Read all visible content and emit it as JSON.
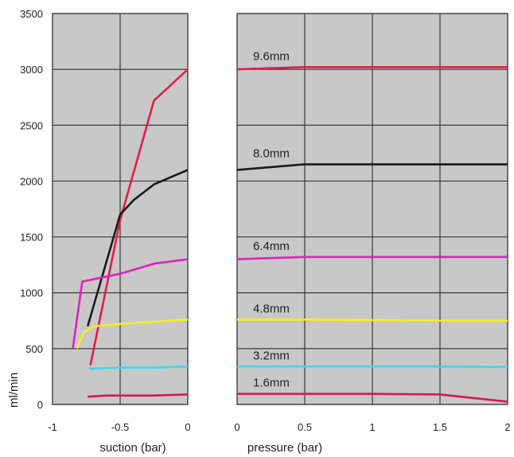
{
  "chart_data": {
    "type": "line",
    "ylabel": "ml/min",
    "ylim": [
      0,
      3500
    ],
    "yticks": [
      "0",
      "500",
      "1000",
      "1500",
      "2000",
      "2500",
      "3000",
      "3500"
    ],
    "colors": {
      "9.6mm": "#e01f4a",
      "8.0mm": "#1a1a1a",
      "6.4mm": "#e020c0",
      "4.8mm": "#f2f020",
      "3.2mm": "#40d8e8",
      "1.6mm": "#d81850"
    },
    "panels": [
      {
        "name": "suction",
        "xlabel": "suction (bar)",
        "xlim": [
          -1,
          0
        ],
        "xticks": [
          "-1",
          "-0.5",
          "0"
        ],
        "series": [
          {
            "name": "9.6mm",
            "x": [
              -0.72,
              -0.5,
              -0.25,
              0
            ],
            "y": [
              350,
              1650,
              2720,
              3000
            ]
          },
          {
            "name": "8.0mm",
            "x": [
              -0.74,
              -0.5,
              -0.4,
              -0.25,
              0
            ],
            "y": [
              700,
              1700,
              1830,
              1970,
              2100
            ]
          },
          {
            "name": "6.4mm",
            "x": [
              -0.85,
              -0.78,
              -0.5,
              -0.25,
              0
            ],
            "y": [
              500,
              1100,
              1170,
              1260,
              1300
            ]
          },
          {
            "name": "4.8mm",
            "x": [
              -0.82,
              -0.77,
              -0.7,
              -0.5,
              -0.25,
              0
            ],
            "y": [
              500,
              640,
              700,
              720,
              740,
              760
            ]
          },
          {
            "name": "3.2mm",
            "x": [
              -0.73,
              -0.5,
              -0.25,
              0
            ],
            "y": [
              320,
              330,
              330,
              340
            ]
          },
          {
            "name": "1.6mm",
            "x": [
              -0.74,
              -0.6,
              -0.25,
              0
            ],
            "y": [
              70,
              80,
              80,
              90
            ]
          }
        ]
      },
      {
        "name": "pressure",
        "xlabel": "pressure (bar)",
        "xlim": [
          0,
          2
        ],
        "xticks": [
          "0",
          "0.5",
          "1",
          "1.5",
          "2"
        ],
        "series": [
          {
            "name": "9.6mm",
            "label": "9.6mm",
            "x": [
              0,
              0.5,
              1,
              1.5,
              2
            ],
            "y": [
              3000,
              3020,
              3020,
              3020,
              3020
            ]
          },
          {
            "name": "8.0mm",
            "label": "8.0mm",
            "x": [
              0,
              0.5,
              1,
              1.5,
              2
            ],
            "y": [
              2100,
              2150,
              2150,
              2150,
              2150
            ]
          },
          {
            "name": "6.4mm",
            "label": "6.4mm",
            "x": [
              0,
              0.5,
              1,
              1.5,
              2
            ],
            "y": [
              1300,
              1320,
              1320,
              1320,
              1320
            ]
          },
          {
            "name": "4.8mm",
            "label": "4.8mm",
            "x": [
              0,
              0.5,
              1,
              1.5,
              2
            ],
            "y": [
              760,
              760,
              755,
              750,
              750
            ]
          },
          {
            "name": "3.2mm",
            "label": "3.2mm",
            "x": [
              0,
              0.5,
              1,
              1.5,
              2
            ],
            "y": [
              340,
              340,
              340,
              340,
              335
            ]
          },
          {
            "name": "1.6mm",
            "label": "1.6mm",
            "x": [
              0,
              0.5,
              1,
              1.5,
              2
            ],
            "y": [
              95,
              95,
              95,
              90,
              25
            ]
          }
        ]
      }
    ],
    "grid": true
  }
}
